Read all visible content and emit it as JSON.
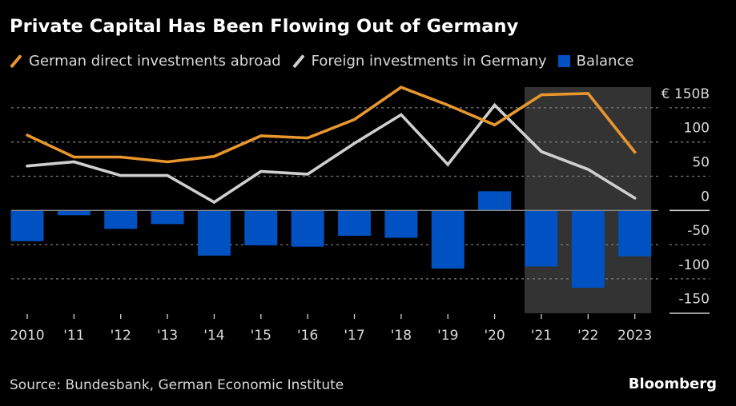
{
  "header": {
    "title": "Private Capital Has Been Flowing Out of Germany"
  },
  "legend": [
    {
      "label": "German direct investments abroad",
      "kind": "line",
      "color": "#e8962e"
    },
    {
      "label": "Foreign investments in Germany",
      "kind": "line",
      "color": "#cfcfcf"
    },
    {
      "label": "Balance",
      "kind": "bar",
      "color": "#0052c2"
    }
  ],
  "footer": {
    "source": "Source: Bundesbank, German Economic Institute",
    "brand": "Bloomberg"
  },
  "chart_data": {
    "type": "bar+line",
    "title": "Private Capital Has Been Flowing Out of Germany",
    "xlabel": "",
    "ylabel": "",
    "unit": "€ billions",
    "categories": [
      "2010",
      "'11",
      "'12",
      "'13",
      "'14",
      "'15",
      "'16",
      "'17",
      "'18",
      "'19",
      "'20",
      "'21",
      "'22",
      "2023"
    ],
    "series": [
      {
        "name": "German direct investments abroad",
        "type": "line",
        "color": "#e8962e",
        "values": [
          110,
          78,
          78,
          71,
          79,
          109,
          106,
          133,
          180,
          154,
          125,
          169,
          171,
          85
        ]
      },
      {
        "name": "Foreign investments in Germany",
        "type": "line",
        "color": "#cfcfcf",
        "values": [
          65,
          71,
          51,
          51,
          12,
          57,
          53,
          98,
          140,
          67,
          154,
          86,
          60,
          18
        ]
      },
      {
        "name": "Balance",
        "type": "bar",
        "color": "#0052c2",
        "values": [
          -45,
          -7,
          -27,
          -20,
          -66,
          -51,
          -53,
          -37,
          -40,
          -85,
          28,
          -82,
          -113,
          -67
        ]
      }
    ],
    "y_ticks": [
      150,
      100,
      50,
      0,
      -50,
      -100,
      -150
    ],
    "y_tick_labels": [
      "€ 150B",
      "100",
      "50",
      "0",
      "-50",
      "-100",
      "-150"
    ],
    "ylim": [
      -150,
      150
    ],
    "grid": true,
    "y_axis_side": "right",
    "legend_position": "top-left",
    "highlighted_range": [
      "'21",
      "2023"
    ],
    "highlight_color": "#333333"
  }
}
